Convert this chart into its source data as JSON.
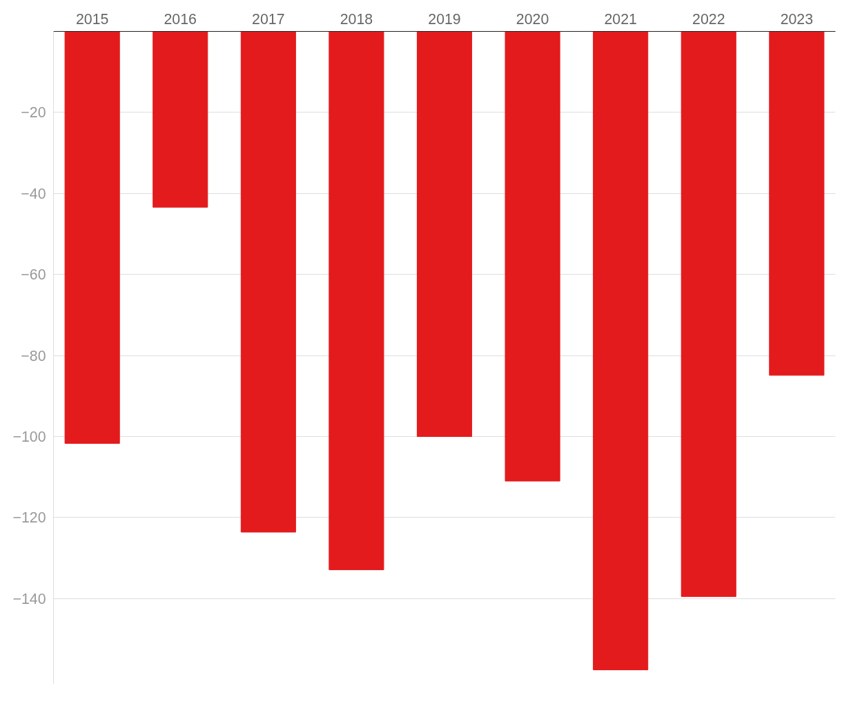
{
  "chart_data": {
    "type": "bar",
    "categories": [
      "2015",
      "2016",
      "2017",
      "2018",
      "2019",
      "2020",
      "2021",
      "2022",
      "2023"
    ],
    "values": [
      -101.7,
      -43.4,
      -123.6,
      -132.9,
      -100,
      -111,
      -157.6,
      -139.5,
      -84.9
    ],
    "color": "#e31b1d",
    "ylim": [
      -161,
      0
    ],
    "yticks": [
      {
        "value": -20,
        "label": "−20"
      },
      {
        "value": -40,
        "label": "−40"
      },
      {
        "value": -60,
        "label": "−60"
      },
      {
        "value": -80,
        "label": "−80"
      },
      {
        "value": -100,
        "label": "−100"
      },
      {
        "value": -120,
        "label": "−120"
      },
      {
        "value": -140,
        "label": "−140"
      }
    ],
    "grid": "y"
  }
}
